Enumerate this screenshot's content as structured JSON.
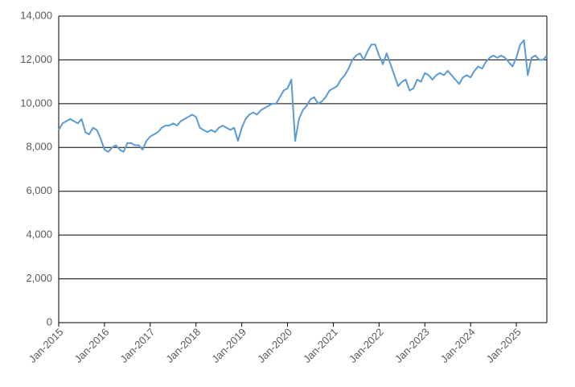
{
  "chart_data": {
    "type": "line",
    "color": "#5b9bd5",
    "grid": true,
    "x": [
      "2015-01",
      "2015-02",
      "2015-03",
      "2015-04",
      "2015-05",
      "2015-06",
      "2015-07",
      "2015-08",
      "2015-09",
      "2015-10",
      "2015-11",
      "2015-12",
      "2016-01",
      "2016-02",
      "2016-03",
      "2016-04",
      "2016-05",
      "2016-06",
      "2016-07",
      "2016-08",
      "2016-09",
      "2016-10",
      "2016-11",
      "2016-12",
      "2017-01",
      "2017-02",
      "2017-03",
      "2017-04",
      "2017-05",
      "2017-06",
      "2017-07",
      "2017-08",
      "2017-09",
      "2017-10",
      "2017-11",
      "2017-12",
      "2018-01",
      "2018-02",
      "2018-03",
      "2018-04",
      "2018-05",
      "2018-06",
      "2018-07",
      "2018-08",
      "2018-09",
      "2018-10",
      "2018-11",
      "2018-12",
      "2019-01",
      "2019-02",
      "2019-03",
      "2019-04",
      "2019-05",
      "2019-06",
      "2019-07",
      "2019-08",
      "2019-09",
      "2019-10",
      "2019-11",
      "2019-12",
      "2020-01",
      "2020-02",
      "2020-03",
      "2020-04",
      "2020-05",
      "2020-06",
      "2020-07",
      "2020-08",
      "2020-09",
      "2020-10",
      "2020-11",
      "2020-12",
      "2021-01",
      "2021-02",
      "2021-03",
      "2021-04",
      "2021-05",
      "2021-06",
      "2021-07",
      "2021-08",
      "2021-09",
      "2021-10",
      "2021-11",
      "2021-12",
      "2022-01",
      "2022-02",
      "2022-03",
      "2022-04",
      "2022-05",
      "2022-06",
      "2022-07",
      "2022-08",
      "2022-09",
      "2022-10",
      "2022-11",
      "2022-12",
      "2023-01",
      "2023-02",
      "2023-03",
      "2023-04",
      "2023-05",
      "2023-06",
      "2023-07",
      "2023-08",
      "2023-09",
      "2023-10",
      "2023-11",
      "2023-12",
      "2024-01",
      "2024-02",
      "2024-03",
      "2024-04",
      "2024-05",
      "2024-06",
      "2024-07",
      "2024-08",
      "2024-09",
      "2024-10",
      "2024-11",
      "2024-12",
      "2025-01",
      "2025-02",
      "2025-03",
      "2025-04",
      "2025-05",
      "2025-06",
      "2025-07",
      "2025-08",
      "2025-09"
    ],
    "values": [
      8800,
      9100,
      9200,
      9300,
      9200,
      9100,
      9300,
      8700,
      8600,
      8900,
      8800,
      8400,
      7900,
      7800,
      8000,
      8100,
      7900,
      7800,
      8200,
      8200,
      8100,
      8100,
      7900,
      8300,
      8500,
      8600,
      8700,
      8900,
      9000,
      9000,
      9100,
      9000,
      9200,
      9300,
      9400,
      9500,
      9400,
      8900,
      8800,
      8700,
      8800,
      8700,
      8900,
      9000,
      8900,
      8800,
      8900,
      8300,
      8900,
      9300,
      9500,
      9600,
      9500,
      9700,
      9800,
      9900,
      10000,
      10000,
      10300,
      10600,
      10700,
      11100,
      8300,
      9300,
      9700,
      9900,
      10200,
      10300,
      10000,
      10100,
      10300,
      10600,
      10700,
      10800,
      11100,
      11300,
      11600,
      12000,
      12200,
      12300,
      12000,
      12400,
      12700,
      12700,
      12200,
      11800,
      12300,
      11800,
      11300,
      10800,
      11000,
      11100,
      10600,
      10700,
      11100,
      11000,
      11400,
      11300,
      11100,
      11300,
      11400,
      11300,
      11500,
      11300,
      11100,
      10900,
      11200,
      11300,
      11200,
      11500,
      11700,
      11600,
      11900,
      12100,
      12200,
      12100,
      12200,
      12100,
      11900,
      11700,
      12100,
      12700,
      12900,
      11300,
      12100,
      12200,
      12000,
      12000,
      12200
    ],
    "xlim": [
      "2015-01",
      "2025-09"
    ],
    "xticks": [
      {
        "value": "2015-01",
        "label": "Jan-2015"
      },
      {
        "value": "2016-01",
        "label": "Jan-2016"
      },
      {
        "value": "2017-01",
        "label": "Jan-2017"
      },
      {
        "value": "2018-01",
        "label": "Jan-2018"
      },
      {
        "value": "2019-01",
        "label": "Jan-2019"
      },
      {
        "value": "2020-01",
        "label": "Jan-2020"
      },
      {
        "value": "2021-01",
        "label": "Jan-2021"
      },
      {
        "value": "2022-01",
        "label": "Jan-2022"
      },
      {
        "value": "2023-01",
        "label": "Jan-2023"
      },
      {
        "value": "2024-01",
        "label": "Jan-2024"
      },
      {
        "value": "2025-01",
        "label": "Jan-2025"
      }
    ],
    "ylim": [
      0,
      14000
    ],
    "yticks": [
      0,
      {
        "value": 2000,
        "label": "2,000"
      },
      {
        "value": 4000,
        "label": "4,000"
      },
      {
        "value": 6000,
        "label": "6,000"
      },
      {
        "value": 8000,
        "label": "8,000"
      },
      {
        "value": 10000,
        "label": "10,000"
      },
      {
        "value": 12000,
        "label": "12,000"
      },
      {
        "value": 14000,
        "label": "14,000"
      }
    ]
  }
}
